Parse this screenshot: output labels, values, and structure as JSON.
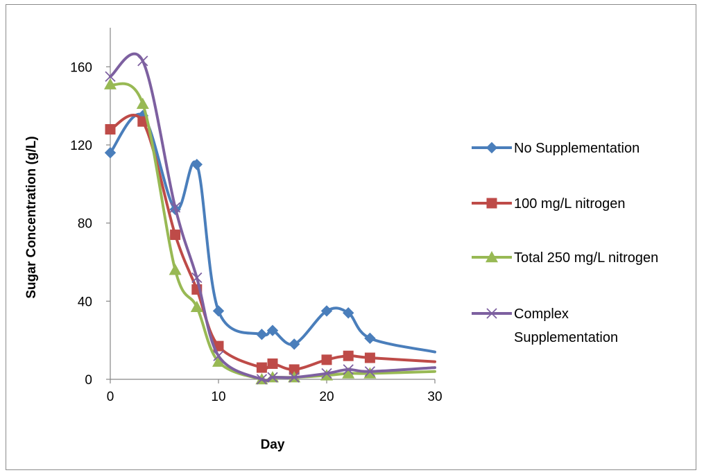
{
  "chart_data": {
    "type": "line",
    "smooth": true,
    "title": "",
    "xlabel": "Day",
    "ylabel": "Sugar Concentration (g/L)",
    "xlim": [
      0,
      30
    ],
    "ylim": [
      0,
      180
    ],
    "xticks": [
      0,
      10,
      20,
      30
    ],
    "yticks": [
      0,
      40,
      80,
      120,
      160
    ],
    "grid": false,
    "legend_position": "right",
    "series": [
      {
        "name": "No Supplementation",
        "color": "#4A7EBB",
        "marker": "diamond",
        "x": [
          0,
          3,
          6,
          8,
          10,
          14,
          15,
          17,
          20,
          22,
          24,
          30
        ],
        "y": [
          116,
          135,
          87,
          110,
          35,
          23,
          25,
          18,
          35,
          34,
          21,
          14
        ]
      },
      {
        "name": "100 mg/L nitrogen",
        "color": "#BE4B48",
        "marker": "square",
        "x": [
          0,
          3,
          6,
          8,
          10,
          14,
          15,
          17,
          20,
          22,
          24,
          30
        ],
        "y": [
          128,
          132,
          74,
          46,
          17,
          6,
          8,
          5,
          10,
          12,
          11,
          9
        ]
      },
      {
        "name": "Total 250 mg/L nitrogen",
        "color": "#98B954",
        "marker": "triangle",
        "x": [
          0,
          3,
          6,
          8,
          10,
          14,
          15,
          17,
          20,
          22,
          24,
          30
        ],
        "y": [
          151,
          141,
          56,
          37,
          9,
          0,
          1,
          1,
          2,
          3,
          3,
          4
        ]
      },
      {
        "name": "Complex Supplementation",
        "legend_lines": [
          "Complex",
          "Supplementation"
        ],
        "color": "#7D60A0",
        "marker": "x",
        "x": [
          0,
          3,
          6,
          8,
          10,
          14,
          15,
          17,
          20,
          22,
          24,
          30
        ],
        "y": [
          155,
          163,
          88,
          52,
          12,
          0,
          1,
          1,
          3,
          5,
          4,
          6
        ]
      }
    ]
  }
}
